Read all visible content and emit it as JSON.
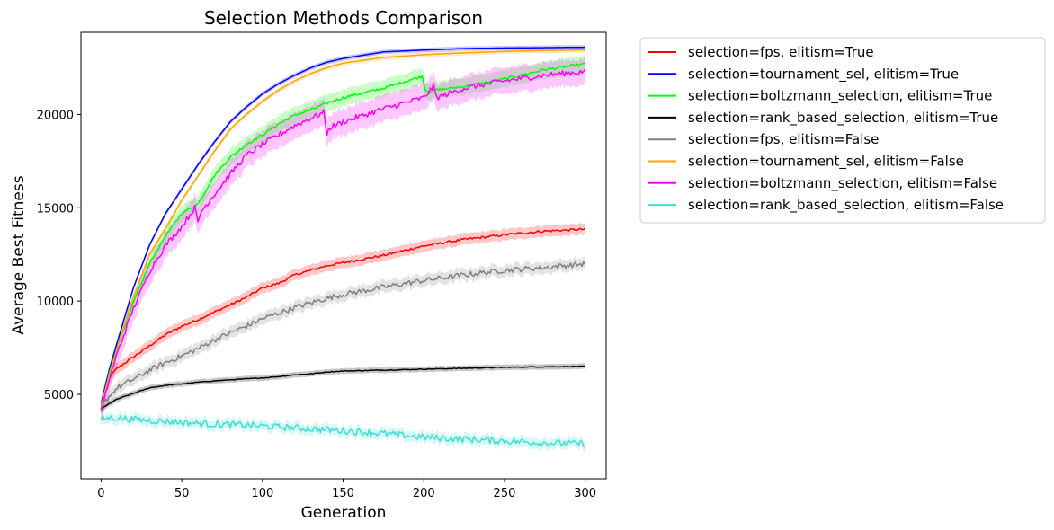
{
  "chart_data": {
    "type": "line",
    "title": "Selection Methods Comparison",
    "xlabel": "Generation",
    "ylabel": "Average Best Fitness",
    "xlim": [
      -12.5,
      313
    ],
    "ylim": [
      475,
      24400
    ],
    "xticks": [
      0,
      50,
      100,
      150,
      200,
      250,
      300
    ],
    "yticks": [
      5000,
      10000,
      15000,
      20000
    ],
    "grid": false,
    "legend_position": "outside-right-top",
    "series": [
      {
        "name": "selection=fps, elitism=True",
        "color": "#ff0000",
        "x": [
          0,
          5,
          10,
          20,
          30,
          40,
          50,
          60,
          70,
          80,
          90,
          100,
          110,
          120,
          130,
          140,
          150,
          175,
          200,
          225,
          250,
          275,
          300
        ],
        "y": [
          4200,
          5900,
          6400,
          7000,
          7600,
          8200,
          8650,
          9000,
          9400,
          9800,
          10200,
          10700,
          10950,
          11400,
          11650,
          11900,
          12050,
          12450,
          12950,
          13300,
          13550,
          13750,
          13850
        ],
        "band": 300,
        "noise": 60
      },
      {
        "name": "selection=tournament_sel, elitism=True",
        "color": "#0000ff",
        "x": [
          0,
          5,
          10,
          20,
          30,
          40,
          50,
          60,
          70,
          80,
          90,
          100,
          110,
          120,
          130,
          140,
          150,
          175,
          200,
          225,
          250,
          275,
          300
        ],
        "y": [
          4500,
          6300,
          7800,
          10700,
          13000,
          14700,
          16000,
          17300,
          18500,
          19600,
          20400,
          21100,
          21650,
          22100,
          22500,
          22800,
          23000,
          23350,
          23450,
          23530,
          23560,
          23580,
          23600
        ],
        "band": 120,
        "noise": 0
      },
      {
        "name": "selection=boltzmann_selection, elitism=True",
        "color": "#00ff00",
        "x": [
          0,
          5,
          10,
          20,
          30,
          40,
          50,
          60,
          70,
          80,
          90,
          100,
          110,
          120,
          130,
          140,
          150,
          175,
          199,
          200,
          201,
          203,
          225,
          250,
          275,
          300
        ],
        "y": [
          4300,
          6100,
          7600,
          9900,
          12000,
          13500,
          14700,
          15200,
          16700,
          17700,
          18400,
          18900,
          19500,
          19950,
          20250,
          20600,
          20900,
          21400,
          22050,
          21700,
          21300,
          21250,
          21500,
          21900,
          22400,
          22700
        ],
        "band": 450,
        "noise": 70
      },
      {
        "name": "selection=rank_based_selection, elitism=True",
        "color": "#000000",
        "x": [
          0,
          5,
          10,
          20,
          30,
          40,
          50,
          60,
          70,
          80,
          90,
          100,
          110,
          120,
          130,
          140,
          150,
          175,
          200,
          225,
          250,
          275,
          300
        ],
        "y": [
          4200,
          4500,
          4750,
          5050,
          5350,
          5480,
          5560,
          5650,
          5720,
          5780,
          5830,
          5880,
          5950,
          6050,
          6100,
          6200,
          6250,
          6300,
          6350,
          6400,
          6450,
          6480,
          6500
        ],
        "band": 150,
        "noise": 20
      },
      {
        "name": "selection=fps, elitism=False",
        "color": "#808080",
        "x": [
          0,
          5,
          10,
          20,
          30,
          40,
          50,
          60,
          70,
          80,
          90,
          100,
          110,
          120,
          130,
          140,
          150,
          175,
          200,
          225,
          250,
          275,
          300
        ],
        "y": [
          4300,
          4900,
          5350,
          5800,
          6300,
          6700,
          7050,
          7450,
          7900,
          8300,
          8650,
          9050,
          9350,
          9650,
          9900,
          10150,
          10350,
          10750,
          11100,
          11400,
          11650,
          11800,
          12000
        ],
        "band": 320,
        "noise": 140
      },
      {
        "name": "selection=tournament_sel, elitism=False",
        "color": "#ffa500",
        "x": [
          0,
          5,
          10,
          20,
          30,
          40,
          50,
          60,
          70,
          80,
          90,
          100,
          110,
          120,
          130,
          140,
          150,
          175,
          200,
          225,
          250,
          275,
          300
        ],
        "y": [
          4400,
          6000,
          7500,
          10200,
          12500,
          13900,
          15400,
          16700,
          18000,
          19200,
          20000,
          20700,
          21300,
          21800,
          22200,
          22500,
          22750,
          23050,
          23200,
          23300,
          23380,
          23430,
          23450
        ],
        "band": 140,
        "noise": 0
      },
      {
        "name": "selection=boltzmann_selection, elitism=False",
        "color": "#ff00ff",
        "x": [
          0,
          5,
          10,
          20,
          30,
          40,
          50,
          58,
          60,
          62,
          70,
          80,
          90,
          100,
          110,
          120,
          130,
          138,
          140,
          142,
          150,
          175,
          200,
          206,
          208,
          225,
          250,
          275,
          300
        ],
        "y": [
          4000,
          5800,
          7200,
          9600,
          11600,
          13000,
          14000,
          15000,
          14200,
          14800,
          15700,
          16800,
          17800,
          18400,
          18900,
          19400,
          19800,
          20100,
          19000,
          19300,
          19600,
          20300,
          20900,
          21500,
          20900,
          21400,
          21800,
          22100,
          22300
        ],
        "band": 700,
        "noise": 150
      },
      {
        "name": "selection=rank_based_selection, elitism=False",
        "color": "#40e0d0",
        "x": [
          0,
          10,
          20,
          30,
          40,
          50,
          60,
          70,
          80,
          90,
          100,
          110,
          120,
          130,
          140,
          150,
          175,
          200,
          225,
          250,
          275,
          300
        ],
        "y": [
          3700,
          3750,
          3650,
          3600,
          3550,
          3500,
          3450,
          3400,
          3380,
          3350,
          3300,
          3250,
          3200,
          3150,
          3100,
          3050,
          2900,
          2700,
          2600,
          2500,
          2400,
          2350
        ],
        "band": 280,
        "noise": 180
      }
    ]
  }
}
